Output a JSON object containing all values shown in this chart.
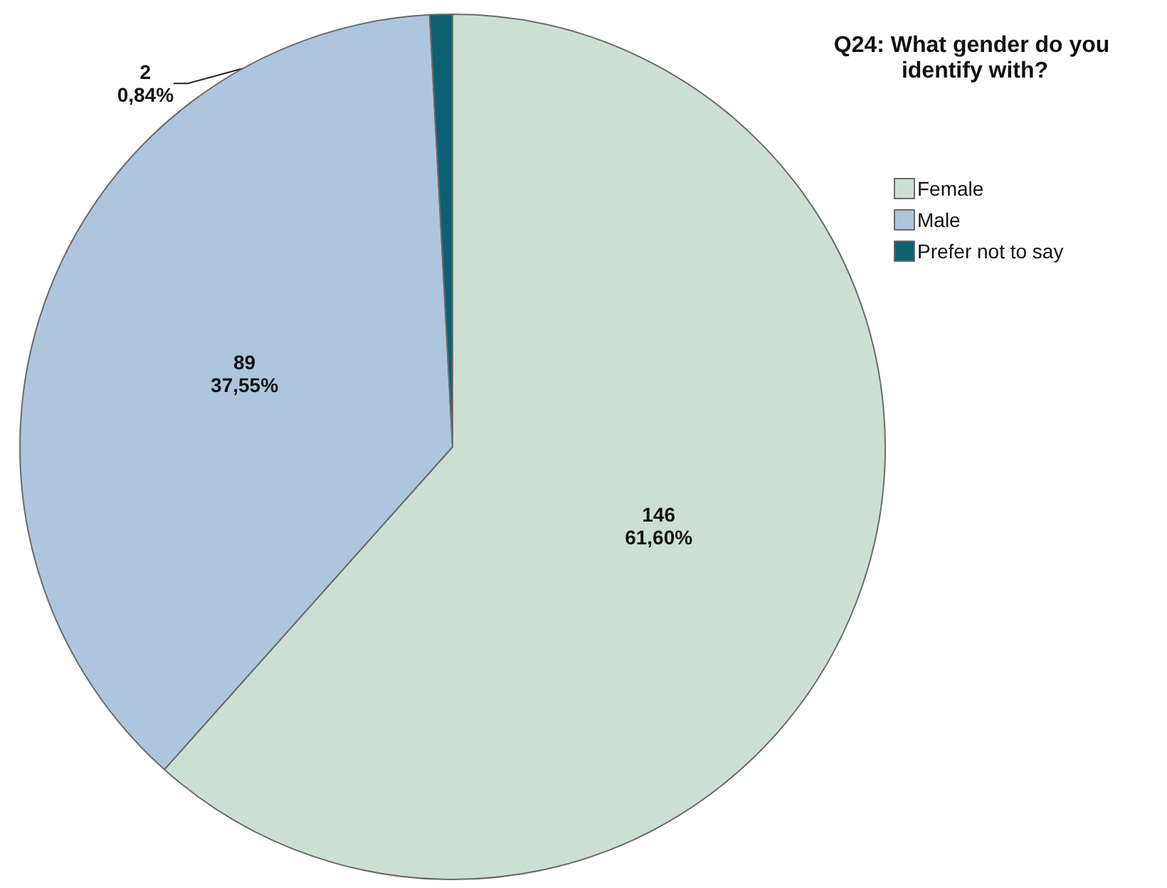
{
  "chart_data": {
    "type": "pie",
    "legend_title": "Q24: What gender do you identify with?",
    "categories": [
      "Female",
      "Male",
      "Prefer not to say"
    ],
    "values": [
      146,
      89,
      2
    ],
    "colors": [
      "#cddfd2",
      "#adc6dd",
      "#0b6171"
    ],
    "value_labels": [
      "146\n61,60%",
      "89\n37,55%",
      "2\n0,84%"
    ],
    "legend": "top right"
  }
}
